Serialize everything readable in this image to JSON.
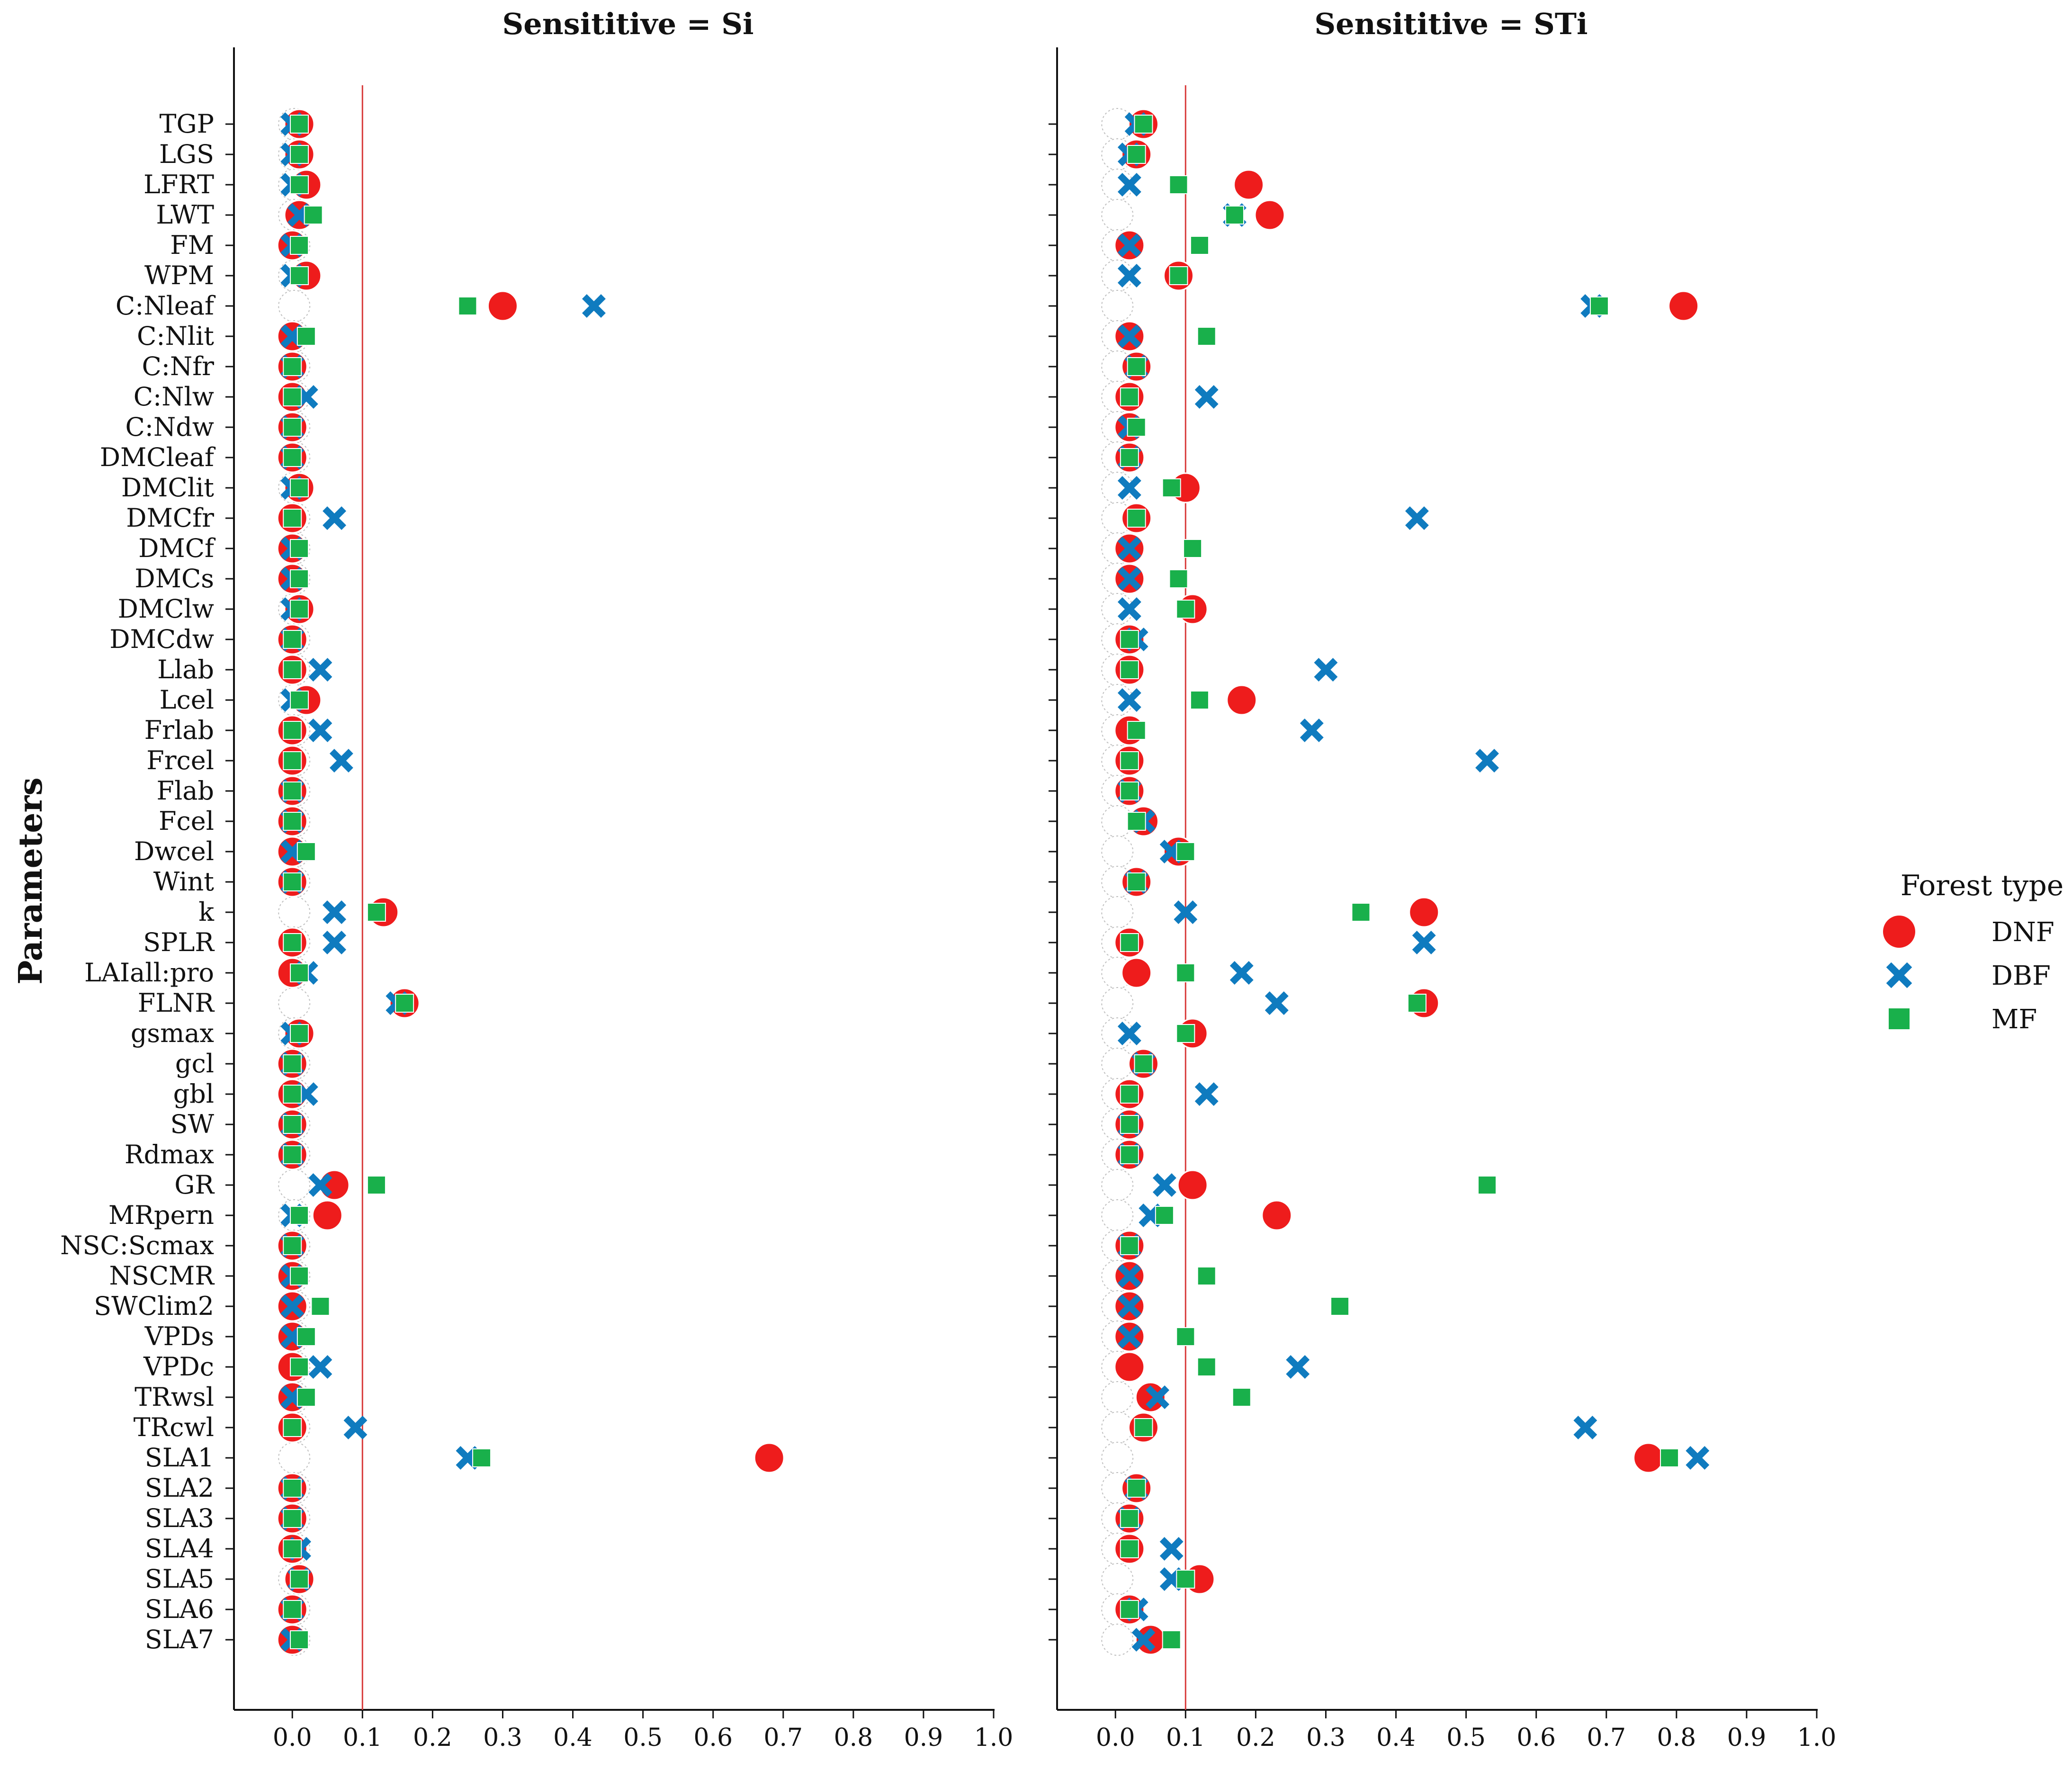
{
  "chart_data": {
    "type": "scatter",
    "ylabel": "Parameters",
    "parameters": [
      "TGP",
      "LGS",
      "LFRT",
      "LWT",
      "FM",
      "WPM",
      "C:Nleaf",
      "C:Nlit",
      "C:Nfr",
      "C:Nlw",
      "C:Ndw",
      "DMCleaf",
      "DMClit",
      "DMCfr",
      "DMCf",
      "DMCs",
      "DMClw",
      "DMCdw",
      "Llab",
      "Lcel",
      "Frlab",
      "Frcel",
      "Flab",
      "Fcel",
      "Dwcel",
      "Wint",
      "k",
      "SPLR",
      "LAIall:pro",
      "FLNR",
      "gsmax",
      "gcl",
      "gbl",
      "SW",
      "Rdmax",
      "GR",
      "MRpern",
      "NSC:Scmax",
      "NSCMR",
      "SWClim2",
      "VPDs",
      "VPDc",
      "TRwsl",
      "TRcwl",
      "SLA1",
      "SLA2",
      "SLA3",
      "SLA4",
      "SLA5",
      "SLA6",
      "SLA7"
    ],
    "xlim": [
      -0.04,
      1.0
    ],
    "xticks": [
      0.0,
      0.1,
      0.2,
      0.3,
      0.4,
      0.5,
      0.6,
      0.7,
      0.8,
      0.9,
      1.0
    ],
    "xtick_labels": [
      "0.0",
      "0.1",
      "0.2",
      "0.3",
      "0.4",
      "0.5",
      "0.6",
      "0.7",
      "0.8",
      "0.9",
      "1.0"
    ],
    "reference_line_x": 0.1,
    "legend": {
      "title": "Forest type",
      "placement": "center-right",
      "entries": [
        {
          "name": "DNF",
          "marker": "circle",
          "color": "#ee1c1c"
        },
        {
          "name": "DBF",
          "marker": "x",
          "color": "#0f7bbf"
        },
        {
          "name": "MF",
          "marker": "square",
          "color": "#19b04b"
        }
      ]
    },
    "panels": [
      {
        "title": "Sensititive = Si",
        "series": [
          {
            "name": "DNF",
            "values": [
              0.01,
              0.01,
              0.02,
              0.01,
              0.0,
              0.02,
              0.3,
              0.0,
              0.0,
              0.0,
              0.0,
              0.0,
              0.01,
              0.0,
              0.0,
              0.0,
              0.01,
              0.0,
              0.0,
              0.02,
              0.0,
              0.0,
              0.0,
              0.0,
              0.0,
              0.0,
              0.13,
              0.0,
              0.0,
              0.16,
              0.01,
              0.0,
              0.0,
              0.0,
              0.0,
              0.06,
              0.05,
              0.0,
              0.0,
              0.0,
              0.0,
              0.0,
              0.0,
              0.0,
              0.68,
              0.0,
              0.0,
              0.0,
              0.01,
              0.0,
              0.0
            ]
          },
          {
            "name": "DBF",
            "values": [
              0.0,
              0.0,
              0.0,
              0.01,
              0.0,
              0.0,
              0.43,
              0.0,
              0.0,
              0.02,
              0.0,
              0.0,
              0.0,
              0.06,
              0.0,
              0.0,
              0.0,
              0.0,
              0.04,
              0.0,
              0.04,
              0.07,
              0.0,
              0.0,
              0.0,
              0.0,
              0.06,
              0.06,
              0.02,
              0.15,
              0.0,
              0.0,
              0.02,
              0.0,
              0.0,
              0.04,
              0.0,
              0.0,
              0.0,
              0.0,
              0.0,
              0.04,
              0.0,
              0.09,
              0.25,
              0.0,
              0.0,
              0.01,
              0.01,
              0.0,
              0.0
            ]
          },
          {
            "name": "MF",
            "values": [
              0.01,
              0.01,
              0.01,
              0.03,
              0.01,
              0.01,
              0.25,
              0.02,
              0.0,
              0.0,
              0.0,
              0.0,
              0.01,
              0.0,
              0.01,
              0.01,
              0.01,
              0.0,
              0.0,
              0.01,
              0.0,
              0.0,
              0.0,
              0.0,
              0.02,
              0.0,
              0.12,
              0.0,
              0.01,
              0.16,
              0.01,
              0.0,
              0.0,
              0.0,
              0.0,
              0.12,
              0.01,
              0.0,
              0.01,
              0.04,
              0.02,
              0.01,
              0.02,
              0.0,
              0.27,
              0.0,
              0.0,
              0.0,
              0.01,
              0.0,
              0.01
            ]
          }
        ]
      },
      {
        "title": "Sensititive = STi",
        "series": [
          {
            "name": "DNF",
            "values": [
              0.04,
              0.03,
              0.19,
              0.22,
              0.02,
              0.09,
              0.81,
              0.02,
              0.03,
              0.02,
              0.02,
              0.02,
              0.1,
              0.03,
              0.02,
              0.02,
              0.11,
              0.02,
              0.02,
              0.18,
              0.02,
              0.02,
              0.02,
              0.04,
              0.09,
              0.03,
              0.44,
              0.02,
              0.03,
              0.44,
              0.11,
              0.04,
              0.02,
              0.02,
              0.02,
              0.11,
              0.23,
              0.02,
              0.02,
              0.02,
              0.02,
              0.02,
              0.05,
              0.04,
              0.76,
              0.03,
              0.02,
              0.02,
              0.12,
              0.02,
              0.05
            ]
          },
          {
            "name": "DBF",
            "values": [
              0.03,
              0.02,
              0.02,
              0.17,
              0.02,
              0.02,
              0.68,
              0.02,
              0.03,
              0.13,
              0.02,
              0.02,
              0.02,
              0.43,
              0.02,
              0.02,
              0.02,
              0.03,
              0.3,
              0.02,
              0.28,
              0.53,
              0.02,
              0.04,
              0.08,
              0.03,
              0.1,
              0.44,
              0.18,
              0.23,
              0.02,
              0.04,
              0.13,
              0.02,
              0.02,
              0.07,
              0.05,
              0.02,
              0.02,
              0.02,
              0.02,
              0.26,
              0.06,
              0.67,
              0.83,
              0.03,
              0.02,
              0.08,
              0.08,
              0.03,
              0.04
            ]
          },
          {
            "name": "MF",
            "values": [
              0.04,
              0.03,
              0.09,
              0.17,
              0.12,
              0.09,
              0.69,
              0.13,
              0.03,
              0.02,
              0.03,
              0.02,
              0.08,
              0.03,
              0.11,
              0.09,
              0.1,
              0.02,
              0.02,
              0.12,
              0.03,
              0.02,
              0.02,
              0.03,
              0.1,
              0.03,
              0.35,
              0.02,
              0.1,
              0.43,
              0.1,
              0.04,
              0.02,
              0.02,
              0.02,
              0.53,
              0.07,
              0.02,
              0.13,
              0.32,
              0.1,
              0.13,
              0.18,
              0.04,
              0.79,
              0.03,
              0.02,
              0.02,
              0.1,
              0.02,
              0.08
            ]
          }
        ]
      }
    ]
  }
}
